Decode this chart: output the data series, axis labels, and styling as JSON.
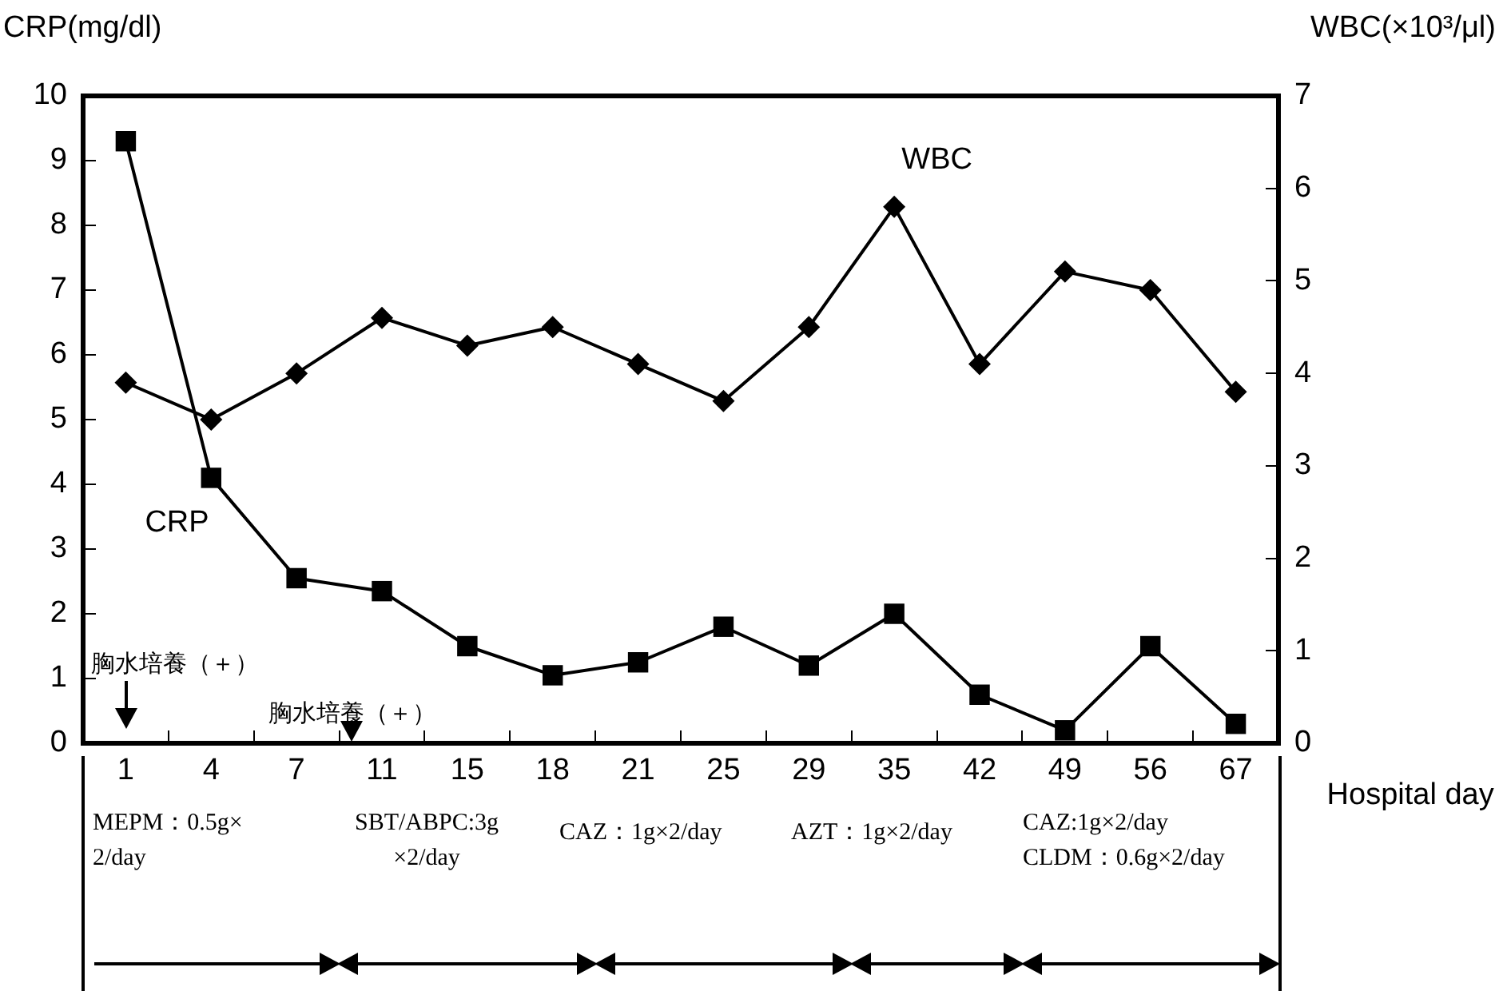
{
  "chart_data": {
    "type": "line",
    "ylabel": "CRP(mg/dl)",
    "y2label": "WBC(×10³/μl)",
    "xlabel": "Hospital day",
    "categories": [
      "1",
      "4",
      "7",
      "11",
      "15",
      "18",
      "21",
      "25",
      "29",
      "35",
      "42",
      "49",
      "56",
      "67"
    ],
    "series": [
      {
        "name": "CRP",
        "color": "#000000",
        "marker": "square",
        "values": [
          9.3,
          4.1,
          2.55,
          2.35,
          1.5,
          1.05,
          1.25,
          1.8,
          1.2,
          2.0,
          0.75,
          0.2,
          1.5,
          0.3
        ]
      },
      {
        "name": "WBC",
        "color": "#000000",
        "marker": "diamond",
        "axis": "y2",
        "values": [
          3.9,
          3.5,
          4.0,
          4.6,
          4.3,
          4.5,
          4.1,
          3.7,
          4.5,
          5.8,
          4.1,
          5.1,
          4.9,
          3.8
        ]
      }
    ],
    "ylim": [
      0,
      10
    ],
    "yticks": [
      0,
      1,
      2,
      3,
      4,
      5,
      6,
      7,
      8,
      9,
      10
    ],
    "y2lim": [
      0,
      7
    ],
    "y2ticks": [
      0,
      1,
      2,
      3,
      4,
      5,
      6,
      7
    ],
    "grid": false,
    "legend": false,
    "line_style": "solid",
    "annotations": [
      "胸水培養（＋）",
      "胸水培養（＋）",
      "MEPM：0.5g×\n2/day",
      "SBT/ABPC:3g\n×2/day",
      "CAZ：1g×2/day",
      "AZT：1g×2/day",
      "CAZ:1g×2/day\nCLDM：0.6g×2/day"
    ]
  }
}
